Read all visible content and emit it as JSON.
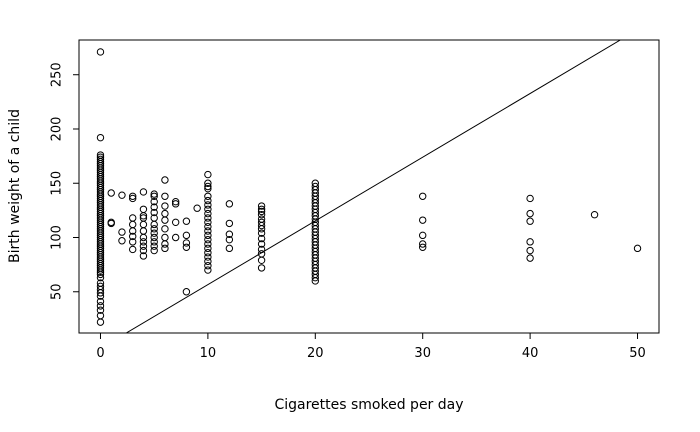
{
  "chart_data": {
    "type": "scatter",
    "title": "",
    "xlabel": "Cigarettes smoked per day",
    "ylabel": "Birth weight of a child",
    "xlim": [
      -2,
      52
    ],
    "ylim": [
      12,
      282
    ],
    "xticks": [
      0,
      10,
      20,
      30,
      40,
      50
    ],
    "yticks": [
      50,
      100,
      150,
      200,
      250
    ],
    "grid": false,
    "legend": "none",
    "point_color": "#000000",
    "line_color": "#000000",
    "regression_line": {
      "x": [
        2.4,
        48.4
      ],
      "y": [
        12,
        282
      ]
    },
    "columns": [
      {
        "x": 0,
        "y": [
          271,
          192,
          176,
          174,
          172,
          170,
          168,
          166,
          164,
          162,
          160,
          158,
          156,
          154,
          152,
          150,
          148,
          146,
          144,
          142,
          140,
          138,
          136,
          134,
          132,
          130,
          128,
          126,
          124,
          122,
          120,
          118,
          116,
          114,
          112,
          110,
          108,
          106,
          104,
          102,
          100,
          98,
          96,
          94,
          92,
          90,
          88,
          86,
          84,
          82,
          80,
          78,
          76,
          74,
          72,
          70,
          68,
          66,
          63,
          58,
          55,
          52,
          49,
          46,
          41,
          37,
          33,
          28,
          22
        ]
      },
      {
        "x": 1,
        "y": [
          141,
          114,
          113
        ]
      },
      {
        "x": 2,
        "y": [
          139,
          105,
          97
        ]
      },
      {
        "x": 3,
        "y": [
          138,
          136,
          118,
          112,
          106,
          101,
          96,
          89
        ]
      },
      {
        "x": 4,
        "y": [
          142,
          126,
          120,
          118,
          112,
          106,
          100,
          96,
          92,
          88,
          83
        ]
      },
      {
        "x": 5,
        "y": [
          140,
          138,
          133,
          128,
          123,
          118,
          112,
          108,
          104,
          100,
          96,
          92,
          88
        ]
      },
      {
        "x": 6,
        "y": [
          153,
          138,
          129,
          122,
          116,
          108,
          100,
          94,
          90
        ]
      },
      {
        "x": 7,
        "y": [
          133,
          131,
          114,
          100
        ]
      },
      {
        "x": 8,
        "y": [
          115,
          102,
          95,
          91,
          50
        ]
      },
      {
        "x": 9,
        "y": [
          127
        ]
      },
      {
        "x": 10,
        "y": [
          158,
          150,
          147,
          145,
          138,
          134,
          130,
          126,
          122,
          118,
          114,
          110,
          106,
          102,
          98,
          94,
          90,
          86,
          82,
          78,
          74,
          70
        ]
      },
      {
        "x": 12,
        "y": [
          131,
          113,
          103,
          98,
          90
        ]
      },
      {
        "x": 15,
        "y": [
          129,
          126,
          124,
          121,
          117,
          114,
          111,
          108,
          104,
          99,
          94,
          89,
          85,
          79,
          72
        ]
      },
      {
        "x": 20,
        "y": [
          150,
          147,
          144,
          141,
          138,
          135,
          132,
          129,
          126,
          123,
          120,
          117,
          114,
          111,
          108,
          105,
          102,
          99,
          96,
          93,
          90,
          87,
          84,
          81,
          78,
          75,
          72,
          69,
          66,
          63,
          60
        ]
      },
      {
        "x": 30,
        "y": [
          138,
          116,
          102,
          94,
          91
        ]
      },
      {
        "x": 40,
        "y": [
          136,
          122,
          115,
          96,
          88,
          81
        ]
      },
      {
        "x": 46,
        "y": [
          121
        ]
      },
      {
        "x": 50,
        "y": [
          90
        ]
      }
    ]
  }
}
